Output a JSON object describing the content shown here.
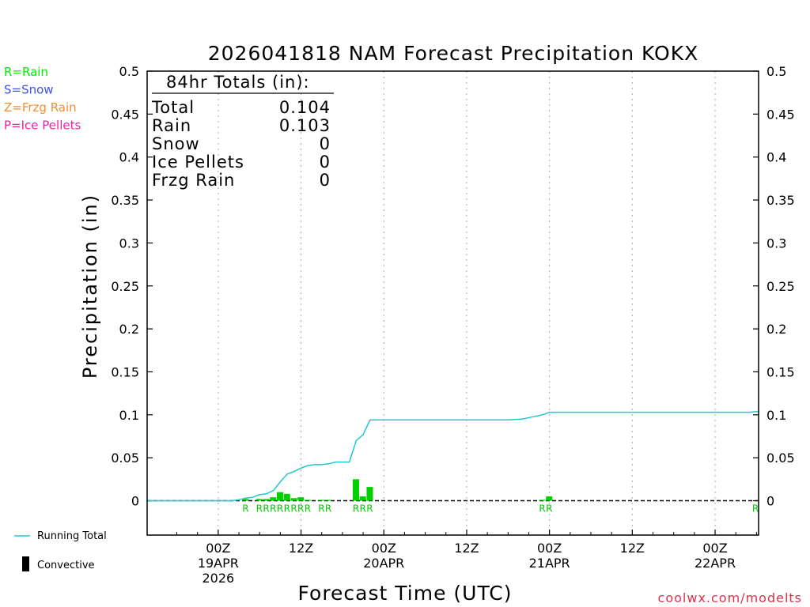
{
  "chart_data": {
    "type": "bar",
    "title": "2026041818 NAM Forecast Precipitation KOKX",
    "xlabel": "Forecast Time (UTC)",
    "ylabel": "Precipitation (in)",
    "ylim": [
      -0.04,
      0.5
    ],
    "xlim_hours": [
      -4.3,
      84.3
    ],
    "yticks": [
      "0",
      "0.05",
      "0.1",
      "0.15",
      "0.2",
      "0.25",
      "0.3",
      "0.35",
      "0.4",
      "0.45",
      "0.5"
    ],
    "ytick_values": [
      0,
      0.05,
      0.1,
      0.15,
      0.2,
      0.25,
      0.3,
      0.35,
      0.4,
      0.45,
      0.5
    ],
    "xticks": [
      {
        "h": 6,
        "lines": [
          "00Z",
          "19APR",
          "2026"
        ]
      },
      {
        "h": 18,
        "lines": [
          "12Z"
        ]
      },
      {
        "h": 30,
        "lines": [
          "00Z",
          "20APR"
        ]
      },
      {
        "h": 42,
        "lines": [
          "12Z"
        ]
      },
      {
        "h": 54,
        "lines": [
          "00Z",
          "21APR"
        ]
      },
      {
        "h": 66,
        "lines": [
          "12Z"
        ]
      },
      {
        "h": 78,
        "lines": [
          "00Z",
          "22APR"
        ]
      }
    ],
    "totals": {
      "header": "84hr Totals (in):",
      "rows": [
        {
          "label": "Total",
          "value": "0.104"
        },
        {
          "label": "Rain",
          "value": "0.103"
        },
        {
          "label": "Snow",
          "value": "0"
        },
        {
          "label": "Ice Pellets",
          "value": "0"
        },
        {
          "label": "Frzg Rain",
          "value": "0"
        }
      ]
    },
    "precip_bars": [
      {
        "h": 10,
        "value": 0.002
      },
      {
        "h": 12,
        "value": 0.002
      },
      {
        "h": 13,
        "value": 0.002
      },
      {
        "h": 14,
        "value": 0.004
      },
      {
        "h": 15,
        "value": 0.01
      },
      {
        "h": 16,
        "value": 0.008
      },
      {
        "h": 17,
        "value": 0.003
      },
      {
        "h": 18,
        "value": 0.004
      },
      {
        "h": 19,
        "value": 0.001
      },
      {
        "h": 21,
        "value": 0.001
      },
      {
        "h": 22,
        "value": 0.001
      },
      {
        "h": 26,
        "value": 0.025
      },
      {
        "h": 27,
        "value": 0.005
      },
      {
        "h": 28,
        "value": 0.016
      },
      {
        "h": 53,
        "value": 0.001
      },
      {
        "h": 54,
        "value": 0.005
      }
    ],
    "ptype_marks": [
      {
        "h": 10,
        "label": "R"
      },
      {
        "h": 12,
        "label": "R"
      },
      {
        "h": 13,
        "label": "R"
      },
      {
        "h": 14,
        "label": "R"
      },
      {
        "h": 15,
        "label": "R"
      },
      {
        "h": 16,
        "label": "R"
      },
      {
        "h": 17,
        "label": "R"
      },
      {
        "h": 18,
        "label": "R"
      },
      {
        "h": 19,
        "label": "R"
      },
      {
        "h": 21,
        "label": "R"
      },
      {
        "h": 22,
        "label": "R"
      },
      {
        "h": 26,
        "label": "R"
      },
      {
        "h": 27,
        "label": "R"
      },
      {
        "h": 28,
        "label": "R"
      },
      {
        "h": 53,
        "label": "R"
      },
      {
        "h": 54,
        "label": "R"
      },
      {
        "h": 84,
        "label": "R"
      }
    ],
    "running_total": {
      "hours": [
        -5,
        8,
        9,
        10,
        11,
        12,
        13,
        14,
        15,
        16,
        17,
        18,
        19,
        20,
        21,
        22,
        23,
        24,
        25,
        26,
        27,
        28,
        29,
        48,
        50,
        53,
        54,
        70,
        83,
        84.3
      ],
      "values": [
        0,
        0,
        0.001,
        0.003,
        0.004,
        0.007,
        0.008,
        0.012,
        0.022,
        0.031,
        0.034,
        0.038,
        0.041,
        0.042,
        0.042,
        0.043,
        0.045,
        0.045,
        0.045,
        0.07,
        0.077,
        0.094,
        0.094,
        0.094,
        0.095,
        0.1,
        0.103,
        0.103,
        0.103,
        0.104
      ]
    },
    "legend": [
      {
        "label": "R=Rain",
        "color": "#00ee00"
      },
      {
        "label": "S=Snow",
        "color": "#3c50f0"
      },
      {
        "label": "Z=Frzg Rain",
        "color": "#f09030"
      },
      {
        "label": "P=Ice Pellets",
        "color": "#f020a0"
      }
    ],
    "legend_bottom": {
      "running_total_label": "Running Total",
      "convective_label": "Convective"
    },
    "colors": {
      "bar": "#00d000",
      "running_total": "#20c8d0",
      "ptype": "#00cc00",
      "credit": "#e0304a"
    },
    "credit": "coolwx.com/modelts"
  }
}
